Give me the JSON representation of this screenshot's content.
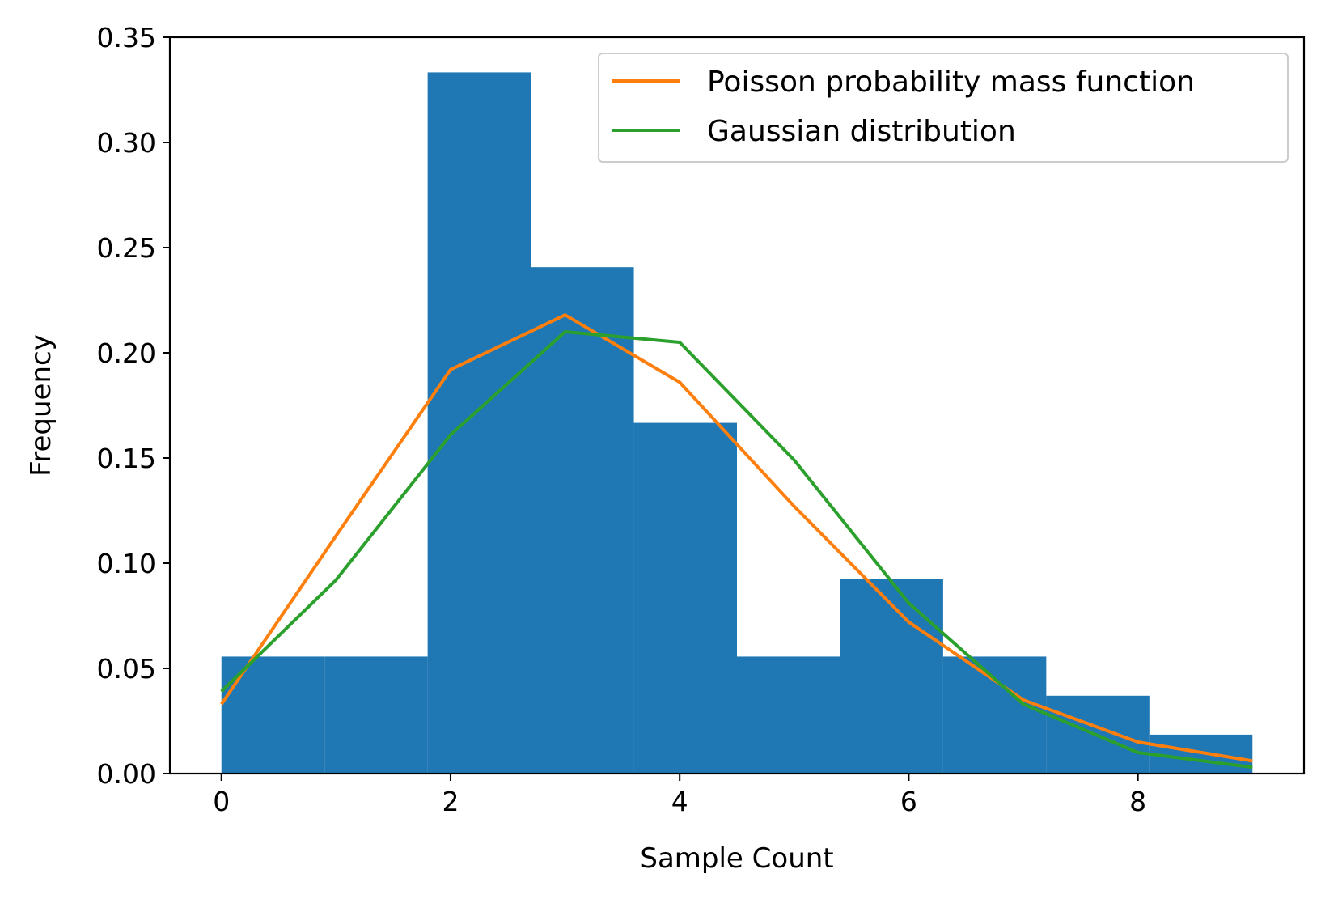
{
  "chart_data": {
    "type": "bar",
    "title": "",
    "xlabel": "Sample Count",
    "ylabel": "Frequency",
    "xlim": [
      -0.45,
      9.45
    ],
    "ylim": [
      0.0,
      0.35
    ],
    "xticks": [
      0,
      2,
      4,
      6,
      8
    ],
    "xtick_labels": [
      "0",
      "2",
      "4",
      "6",
      "8"
    ],
    "yticks": [
      0.0,
      0.05,
      0.1,
      0.15,
      0.2,
      0.25,
      0.3,
      0.35
    ],
    "ytick_labels": [
      "0.00",
      "0.05",
      "0.10",
      "0.15",
      "0.20",
      "0.25",
      "0.30",
      "0.35"
    ],
    "grid": false,
    "legend_position": "top-right",
    "histogram": {
      "color": "#1f77b4",
      "bin_edges": [
        0,
        0.9,
        1.8,
        2.7,
        3.6,
        4.5,
        5.4,
        6.3,
        7.2,
        8.1,
        9.0
      ],
      "values": [
        0.0556,
        0.0556,
        0.3333,
        0.2407,
        0.1667,
        0.0556,
        0.0926,
        0.0556,
        0.037,
        0.0185
      ]
    },
    "series": [
      {
        "name": "Poisson probability mass function",
        "type": "line",
        "color": "#ff7f0e",
        "x": [
          0,
          1,
          2,
          3,
          4,
          5,
          6,
          7,
          8,
          9
        ],
        "values": [
          0.033,
          0.113,
          0.192,
          0.218,
          0.186,
          0.127,
          0.072,
          0.035,
          0.015,
          0.006
        ]
      },
      {
        "name": "Gaussian distribution",
        "type": "line",
        "color": "#2ca02c",
        "x": [
          0,
          1,
          2,
          3,
          4,
          5,
          6,
          7,
          8,
          9
        ],
        "values": [
          0.039,
          0.092,
          0.161,
          0.21,
          0.205,
          0.149,
          0.081,
          0.033,
          0.01,
          0.003
        ]
      }
    ]
  }
}
